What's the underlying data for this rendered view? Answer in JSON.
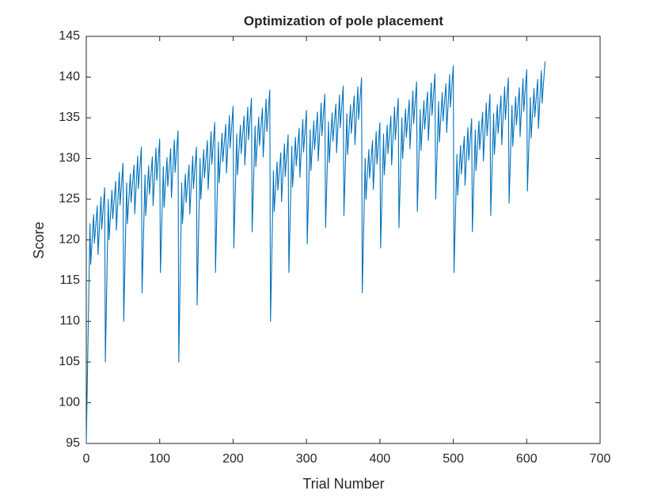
{
  "chart_data": {
    "type": "line",
    "title": "Optimization of pole placement",
    "x_label": "Trial Number",
    "y_label": "Score",
    "color": "#0072bd",
    "xlim": [
      0,
      700
    ],
    "xticks": [
      0,
      100,
      200,
      300,
      400,
      500,
      600,
      700
    ],
    "ylim": [
      95,
      145
    ],
    "yticks": [
      95,
      100,
      105,
      110,
      115,
      120,
      125,
      130,
      135,
      140,
      145
    ],
    "x": [
      0,
      5,
      6,
      10,
      11,
      15,
      16,
      20,
      21,
      25,
      26,
      30,
      31,
      35,
      36,
      40,
      41,
      45,
      46,
      50,
      51,
      55,
      56,
      60,
      61,
      65,
      66,
      70,
      71,
      75,
      76,
      80,
      81,
      85,
      86,
      90,
      91,
      95,
      96,
      100,
      101,
      105,
      106,
      110,
      111,
      115,
      116,
      120,
      121,
      125,
      126,
      130,
      131,
      135,
      136,
      140,
      141,
      145,
      146,
      150,
      151,
      155,
      156,
      160,
      161,
      165,
      166,
      170,
      171,
      175,
      176,
      180,
      181,
      185,
      186,
      190,
      191,
      195,
      196,
      200,
      201,
      205,
      206,
      210,
      211,
      215,
      216,
      220,
      221,
      225,
      226,
      230,
      231,
      235,
      236,
      240,
      241,
      245,
      246,
      250,
      251,
      255,
      256,
      260,
      261,
      265,
      266,
      270,
      271,
      275,
      276,
      280,
      281,
      285,
      286,
      290,
      291,
      295,
      296,
      300,
      301,
      305,
      306,
      310,
      311,
      315,
      316,
      320,
      321,
      325,
      326,
      330,
      331,
      335,
      336,
      340,
      341,
      345,
      346,
      350,
      351,
      355,
      356,
      360,
      361,
      365,
      366,
      370,
      371,
      375,
      376,
      380,
      381,
      385,
      386,
      390,
      391,
      395,
      396,
      400,
      401,
      405,
      406,
      410,
      411,
      415,
      416,
      420,
      421,
      425,
      426,
      430,
      431,
      435,
      436,
      440,
      441,
      445,
      446,
      450,
      451,
      455,
      456,
      460,
      461,
      465,
      466,
      470,
      471,
      475,
      476,
      480,
      481,
      485,
      486,
      490,
      491,
      495,
      496,
      500,
      501,
      505,
      506,
      510,
      511,
      515,
      516,
      520,
      521,
      525,
      526,
      530,
      531,
      535,
      536,
      540,
      541,
      545,
      546,
      550,
      551,
      555,
      556,
      560,
      561,
      565,
      566,
      570,
      571,
      575,
      576,
      580,
      581,
      585,
      586,
      590,
      591,
      595,
      596,
      600,
      601,
      605,
      606,
      610,
      611,
      615,
      616,
      620,
      621,
      625
    ],
    "values": [
      95,
      122,
      117,
      123.1,
      119.6,
      124.2,
      118.2,
      125.3,
      121.3,
      126.4,
      105,
      125,
      120,
      126.1,
      122.6,
      127.2,
      121.2,
      128.3,
      124.3,
      129.4,
      110,
      127,
      122,
      128.1,
      124.6,
      129.2,
      123.2,
      130.3,
      126.3,
      131.4,
      113.5,
      128,
      123,
      129.1,
      125.6,
      130.2,
      124.2,
      131.3,
      127.3,
      132.4,
      116,
      129,
      124,
      130.1,
      126.6,
      131.2,
      125.2,
      132.3,
      128.3,
      133.4,
      105,
      127,
      122,
      128.1,
      124.6,
      129.2,
      123.2,
      130.3,
      126.3,
      131.4,
      112,
      130,
      125,
      131.1,
      127.6,
      132.2,
      126.2,
      133.3,
      129.3,
      134.4,
      116,
      132,
      127,
      133.1,
      129.6,
      134.2,
      128.2,
      135.3,
      131.3,
      136.4,
      119,
      133,
      128,
      134.1,
      130.6,
      135.2,
      129.2,
      136.3,
      132.3,
      137.4,
      121,
      134,
      129,
      135.1,
      131.6,
      136.2,
      130.2,
      137.3,
      133.3,
      138.4,
      110,
      128.5,
      123.5,
      129.6,
      126.1,
      130.7,
      124.7,
      131.8,
      127.8,
      132.9,
      116,
      131.5,
      126.5,
      132.6,
      129.1,
      133.7,
      127.7,
      134.8,
      130.8,
      135.9,
      119.5,
      133.5,
      128.5,
      134.6,
      131.1,
      135.7,
      129.7,
      136.8,
      132.8,
      137.9,
      121.5,
      134.5,
      129.5,
      135.6,
      132.1,
      136.7,
      130.7,
      137.8,
      133.8,
      138.9,
      123,
      135.5,
      130.5,
      136.6,
      133.1,
      137.7,
      131.7,
      138.8,
      134.8,
      139.9,
      113.5,
      130,
      125,
      131.1,
      127.6,
      132.2,
      126.2,
      133.3,
      129.3,
      134.4,
      119,
      133,
      128,
      134.1,
      130.6,
      135.2,
      129.2,
      136.3,
      132.3,
      137.4,
      121.5,
      135,
      130,
      136.1,
      132.6,
      137.2,
      131.2,
      138.3,
      134.3,
      139.4,
      123.5,
      136,
      131,
      137.1,
      133.6,
      138.2,
      132.2,
      139.3,
      135.3,
      140.4,
      125,
      137,
      132,
      138.1,
      134.6,
      139.2,
      133.2,
      140.3,
      136.3,
      141.4,
      116,
      130.5,
      125.5,
      131.6,
      128.1,
      132.7,
      126.7,
      133.8,
      129.8,
      134.9,
      121,
      133.5,
      128.5,
      134.6,
      131.1,
      135.7,
      129.7,
      136.8,
      132.8,
      137.9,
      123,
      135.5,
      130.5,
      136.6,
      133.1,
      137.7,
      131.7,
      138.8,
      134.8,
      139.9,
      124.5,
      136.5,
      131.5,
      137.6,
      134.1,
      138.7,
      132.7,
      139.8,
      135.8,
      140.9,
      126,
      137.5,
      132.5,
      138.6,
      135.1,
      139.7,
      133.7,
      140.8,
      136.8,
      141.9
    ]
  }
}
